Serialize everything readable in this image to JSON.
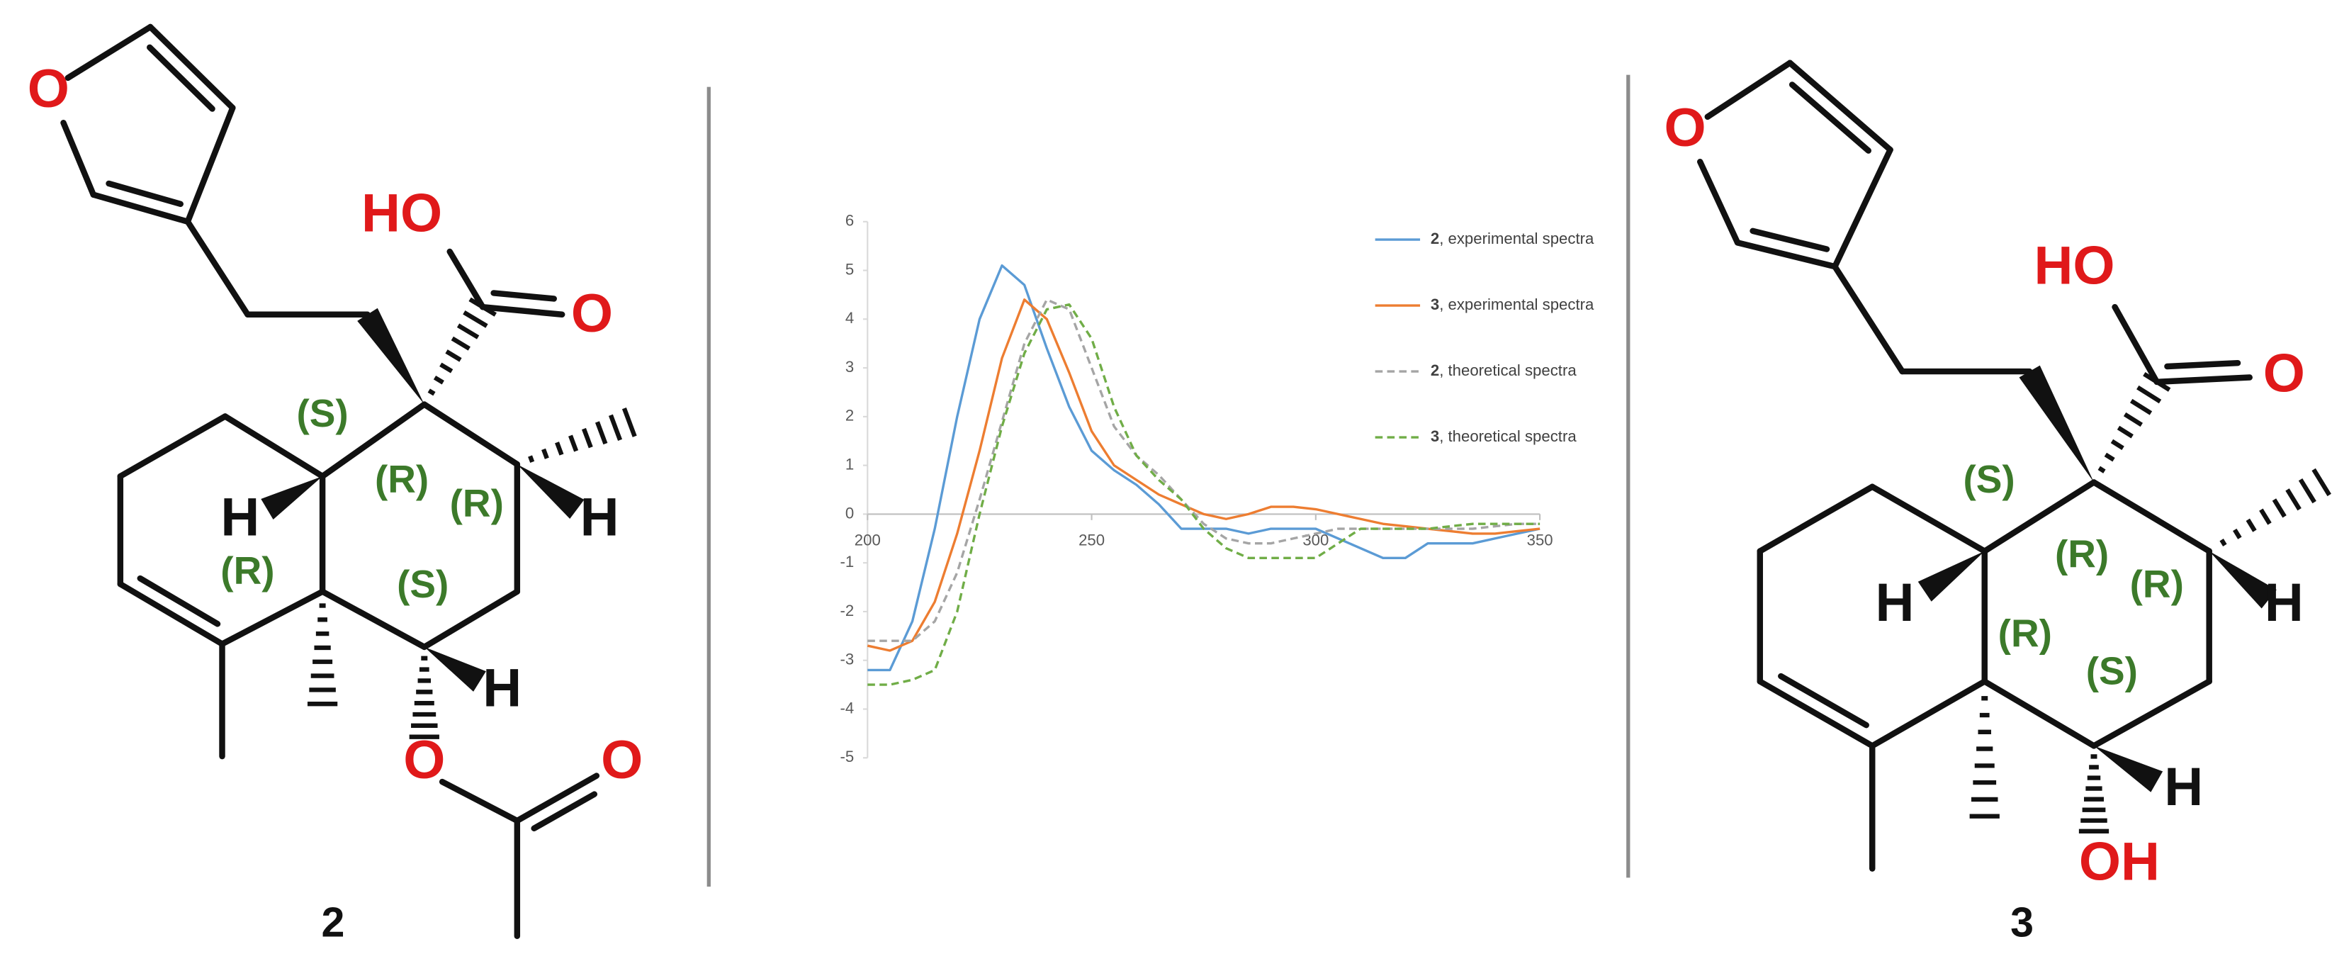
{
  "molecules": [
    {
      "number": "2",
      "atoms": [
        "O",
        "HO",
        "O",
        "H",
        "H",
        "H",
        "O",
        "O"
      ],
      "stereo_labels": [
        "(S)",
        "(R)",
        "(R)",
        "(R)",
        "(S)"
      ]
    },
    {
      "number": "3",
      "atoms": [
        "O",
        "HO",
        "O",
        "H",
        "H",
        "H",
        "OH"
      ],
      "stereo_labels": [
        "(S)",
        "(R)",
        "(R)",
        "(R)",
        "(S)"
      ]
    }
  ],
  "chart_data": {
    "type": "line",
    "x": [
      200,
      205,
      210,
      215,
      220,
      225,
      230,
      235,
      240,
      245,
      250,
      255,
      260,
      265,
      270,
      275,
      280,
      285,
      290,
      295,
      300,
      305,
      310,
      315,
      320,
      325,
      330,
      335,
      340,
      345,
      350
    ],
    "series": [
      {
        "name": "2, experimental spectra",
        "color": "#5b9bd5",
        "line_style": "solid",
        "values": [
          -3.2,
          -3.2,
          -2.2,
          -0.3,
          2.0,
          4.0,
          5.1,
          4.7,
          3.4,
          2.2,
          1.3,
          0.9,
          0.6,
          0.2,
          -0.3,
          -0.3,
          -0.3,
          -0.4,
          -0.3,
          -0.3,
          -0.3,
          -0.5,
          -0.7,
          -0.9,
          -0.9,
          -0.6,
          -0.6,
          -0.6,
          -0.5,
          -0.4,
          -0.3
        ]
      },
      {
        "name": "3, experimental spectra",
        "color": "#ed7d31",
        "line_style": "solid",
        "values": [
          -2.7,
          -2.8,
          -2.6,
          -1.8,
          -0.4,
          1.3,
          3.2,
          4.4,
          4.0,
          2.9,
          1.7,
          1.0,
          0.7,
          0.4,
          0.2,
          0.0,
          -0.1,
          0.0,
          0.15,
          0.15,
          0.1,
          0.0,
          -0.1,
          -0.2,
          -0.25,
          -0.3,
          -0.35,
          -0.4,
          -0.4,
          -0.35,
          -0.3
        ]
      },
      {
        "name": "2, theoretical spectra",
        "color": "#a5a5a5",
        "line_style": "dashed",
        "values": [
          -2.6,
          -2.6,
          -2.6,
          -2.2,
          -1.2,
          0.3,
          1.9,
          3.5,
          4.4,
          4.2,
          3.0,
          1.8,
          1.2,
          0.8,
          0.3,
          -0.2,
          -0.5,
          -0.6,
          -0.6,
          -0.5,
          -0.4,
          -0.3,
          -0.3,
          -0.3,
          -0.3,
          -0.3,
          -0.3,
          -0.3,
          -0.25,
          -0.2,
          -0.2
        ]
      },
      {
        "name": "3, theoretical spectra",
        "color": "#70ad47",
        "line_style": "dashed",
        "values": [
          -3.5,
          -3.5,
          -3.4,
          -3.2,
          -2.0,
          0.0,
          1.8,
          3.3,
          4.2,
          4.3,
          3.6,
          2.2,
          1.2,
          0.7,
          0.3,
          -0.3,
          -0.7,
          -0.9,
          -0.9,
          -0.9,
          -0.9,
          -0.6,
          -0.3,
          -0.3,
          -0.3,
          -0.3,
          -0.25,
          -0.2,
          -0.2,
          -0.2,
          -0.2
        ]
      }
    ],
    "xlim": [
      200,
      350
    ],
    "ylim": [
      -5,
      6
    ],
    "xticks": [
      200,
      250,
      300,
      350
    ],
    "yticks": [
      -5,
      -4,
      -3,
      -2,
      -1,
      0,
      1,
      2,
      3,
      4,
      5,
      6
    ],
    "legend": "right"
  }
}
